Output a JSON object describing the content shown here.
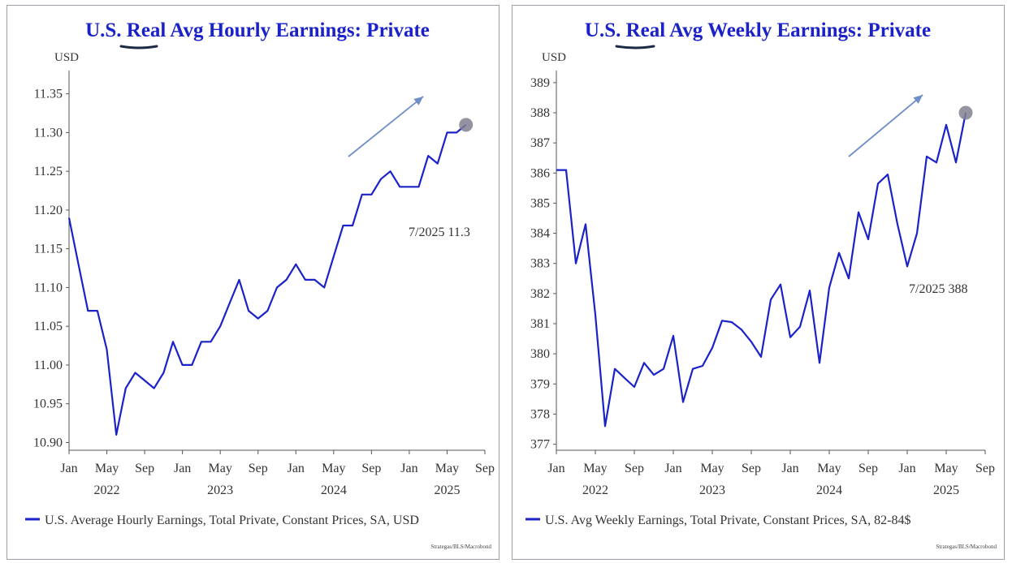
{
  "colors": {
    "series": "#1a22c8",
    "title": "#1a22c8",
    "arrow": "#6f8ec8",
    "marker": "#808090",
    "underline": "#1c2a44"
  },
  "chart_data": [
    {
      "type": "line",
      "title": "U.S. Real Avg Hourly Earnings: Private",
      "title_underlined_word": "Real",
      "unit": "USD",
      "ylim": [
        10.89,
        11.38
      ],
      "yticks": [
        "11.35",
        "11.30",
        "11.25",
        "11.20",
        "11.15",
        "11.10",
        "11.05",
        "11.00",
        "10.95",
        "10.90"
      ],
      "ytick_values": [
        11.35,
        11.3,
        11.25,
        11.2,
        11.15,
        11.1,
        11.05,
        11.0,
        10.95,
        10.9
      ],
      "xlim": [
        "2022-01",
        "2025-09"
      ],
      "xticks": [
        "Jan",
        "May",
        "Sep",
        "Jan",
        "May",
        "Sep",
        "Jan",
        "May",
        "Sep",
        "Jan",
        "May",
        "Sep"
      ],
      "xtick_dates": [
        "2022-01",
        "2022-05",
        "2022-09",
        "2023-01",
        "2023-05",
        "2023-09",
        "2024-01",
        "2024-05",
        "2024-09",
        "2025-01",
        "2025-05",
        "2025-09"
      ],
      "years": [
        "2022",
        "2023",
        "2024",
        "2025"
      ],
      "annotation": "7/2025 11.3",
      "trend_arrow": true,
      "series": [
        {
          "name": "U.S. Average Hourly Earnings, Total Private, Constant Prices, SA, USD",
          "x": [
            "2022-01",
            "2022-02",
            "2022-03",
            "2022-04",
            "2022-05",
            "2022-06",
            "2022-07",
            "2022-08",
            "2022-09",
            "2022-10",
            "2022-11",
            "2022-12",
            "2023-01",
            "2023-02",
            "2023-03",
            "2023-04",
            "2023-05",
            "2023-06",
            "2023-07",
            "2023-08",
            "2023-09",
            "2023-10",
            "2023-11",
            "2023-12",
            "2024-01",
            "2024-02",
            "2024-03",
            "2024-04",
            "2024-05",
            "2024-06",
            "2024-07",
            "2024-08",
            "2024-09",
            "2024-10",
            "2024-11",
            "2024-12",
            "2025-01",
            "2025-02",
            "2025-03",
            "2025-04",
            "2025-05",
            "2025-06",
            "2025-07"
          ],
          "values": [
            11.19,
            11.13,
            11.07,
            11.07,
            11.02,
            10.91,
            10.97,
            10.99,
            10.98,
            10.97,
            10.99,
            11.03,
            11.0,
            11.0,
            11.03,
            11.03,
            11.05,
            11.08,
            11.11,
            11.07,
            11.06,
            11.07,
            11.1,
            11.11,
            11.13,
            11.11,
            11.11,
            11.1,
            11.14,
            11.18,
            11.18,
            11.22,
            11.22,
            11.24,
            11.25,
            11.23,
            11.23,
            11.23,
            11.27,
            11.26,
            11.3,
            11.3,
            11.31
          ]
        }
      ],
      "source": "Strategas/BLS/Macrobond"
    },
    {
      "type": "line",
      "title": "U.S. Real Avg Weekly Earnings: Private",
      "title_underlined_word": "Real",
      "unit": "USD",
      "ylim": [
        376.8,
        389.4
      ],
      "yticks": [
        "389",
        "388",
        "387",
        "386",
        "385",
        "384",
        "383",
        "382",
        "381",
        "380",
        "379",
        "378",
        "377"
      ],
      "ytick_values": [
        389,
        388,
        387,
        386,
        385,
        384,
        383,
        382,
        381,
        380,
        379,
        378,
        377
      ],
      "xlim": [
        "2022-01",
        "2025-09"
      ],
      "xticks": [
        "Jan",
        "May",
        "Sep",
        "Jan",
        "May",
        "Sep",
        "Jan",
        "May",
        "Sep",
        "Jan",
        "May",
        "Sep"
      ],
      "xtick_dates": [
        "2022-01",
        "2022-05",
        "2022-09",
        "2023-01",
        "2023-05",
        "2023-09",
        "2024-01",
        "2024-05",
        "2024-09",
        "2025-01",
        "2025-05",
        "2025-09"
      ],
      "years": [
        "2022",
        "2023",
        "2024",
        "2025"
      ],
      "annotation": "7/2025 388",
      "trend_arrow": true,
      "series": [
        {
          "name": "U.S. Avg Weekly Earnings, Total Private, Constant Prices, SA, 82-84$",
          "x": [
            "2022-01",
            "2022-02",
            "2022-03",
            "2022-04",
            "2022-05",
            "2022-06",
            "2022-07",
            "2022-08",
            "2022-09",
            "2022-10",
            "2022-11",
            "2022-12",
            "2023-01",
            "2023-02",
            "2023-03",
            "2023-04",
            "2023-05",
            "2023-06",
            "2023-07",
            "2023-08",
            "2023-09",
            "2023-10",
            "2023-11",
            "2023-12",
            "2024-01",
            "2024-02",
            "2024-03",
            "2024-04",
            "2024-05",
            "2024-06",
            "2024-07",
            "2024-08",
            "2024-09",
            "2024-10",
            "2024-11",
            "2024-12",
            "2025-01",
            "2025-02",
            "2025-03",
            "2025-04",
            "2025-05",
            "2025-06",
            "2025-07"
          ],
          "values": [
            386.1,
            386.1,
            383.0,
            384.3,
            381.3,
            377.6,
            379.5,
            379.2,
            378.9,
            379.7,
            379.3,
            379.5,
            380.6,
            378.4,
            379.5,
            379.6,
            380.2,
            381.1,
            381.05,
            380.8,
            380.4,
            379.9,
            381.8,
            382.3,
            380.55,
            380.9,
            382.1,
            379.7,
            382.2,
            383.35,
            382.5,
            384.7,
            383.8,
            385.65,
            385.95,
            384.3,
            382.9,
            384.0,
            386.55,
            386.35,
            387.6,
            386.35,
            388.0
          ]
        }
      ],
      "source": "Strategas/BLS/Macrobond"
    }
  ]
}
